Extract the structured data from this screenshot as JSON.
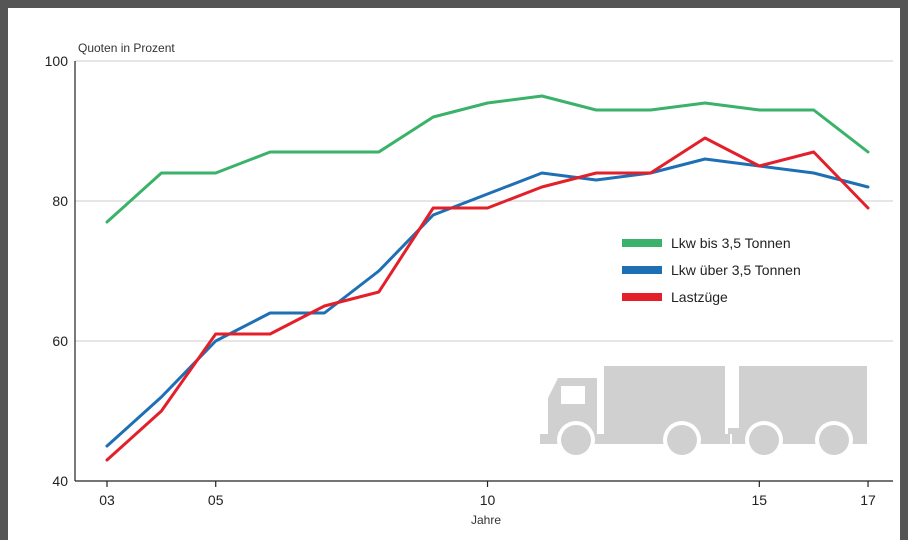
{
  "chart_data": {
    "type": "line",
    "title": "",
    "ylabel": "Quoten in Prozent",
    "xlabel": "Jahre",
    "x": [
      3,
      4,
      5,
      6,
      7,
      8,
      9,
      10,
      11,
      12,
      13,
      14,
      15,
      16,
      17
    ],
    "xlim": [
      2.5,
      17.5
    ],
    "ylim": [
      40,
      100
    ],
    "x_ticks": [
      3,
      5,
      10,
      15,
      17
    ],
    "x_tick_labels": [
      "03",
      "05",
      "10",
      "15",
      "17"
    ],
    "y_ticks": [
      40,
      60,
      80,
      100
    ],
    "y_tick_labels": [
      "40",
      "60",
      "80",
      "100"
    ],
    "grid": "horizontal",
    "legend_position": "center-right",
    "series": [
      {
        "name": "Lkw bis 3,5 Tonnen",
        "color": "#3ab26a",
        "values": [
          77,
          84,
          84,
          87,
          87,
          87,
          92,
          94,
          95,
          93,
          93,
          94,
          93,
          93,
          87
        ]
      },
      {
        "name": "Lkw über 3,5 Tonnen",
        "color": "#1f6fb5",
        "values": [
          45,
          52,
          60,
          64,
          64,
          70,
          78,
          81,
          84,
          83,
          84,
          86,
          85,
          84,
          82
        ]
      },
      {
        "name": "Lastzüge",
        "color": "#e3202a",
        "values": [
          43,
          50,
          61,
          61,
          65,
          67,
          79,
          79,
          82,
          84,
          84,
          89,
          85,
          87,
          79
        ]
      }
    ]
  },
  "decorations": {
    "truck_icon": "truck-with-trailer-icon",
    "truck_color": "#d0d0d0",
    "frame_color": "#555555",
    "grid_color": "#cccccc"
  }
}
